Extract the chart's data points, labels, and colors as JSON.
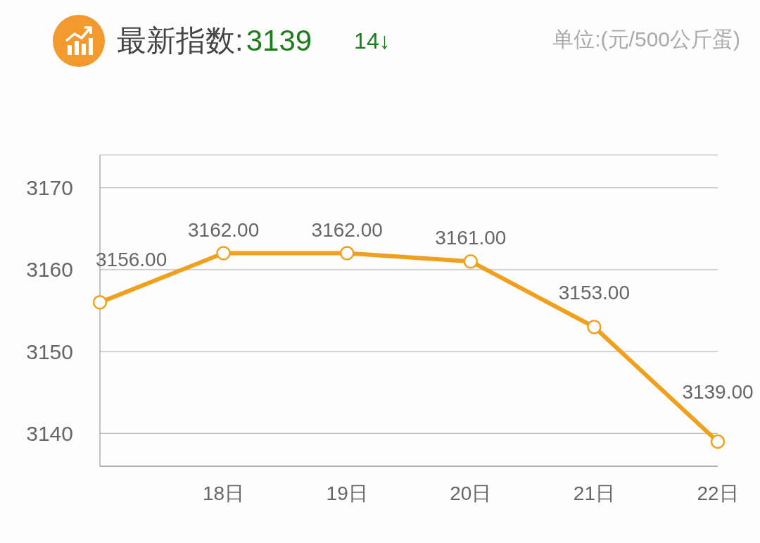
{
  "chart_data": {
    "type": "line",
    "title": "最新指数:",
    "annotations": [
      "3139",
      "14↓"
    ],
    "ylabel": "单位:(元/500公斤蛋)",
    "categories": [
      null,
      "18日",
      "19日",
      "20日",
      "21日",
      "22日"
    ],
    "values": [
      3156,
      3162,
      3162,
      3161,
      3153,
      3139
    ],
    "value_labels": [
      "3156.00",
      "3162.00",
      "3162.00",
      "3161.00",
      "3153.00",
      "3139.00"
    ],
    "color": "#f0a01c",
    "ylim": [
      3136,
      3174
    ],
    "yticks": [
      3140,
      3150,
      3160,
      3170
    ],
    "grid": "y",
    "marker": "circle",
    "line_style": "solid",
    "legend": false
  }
}
